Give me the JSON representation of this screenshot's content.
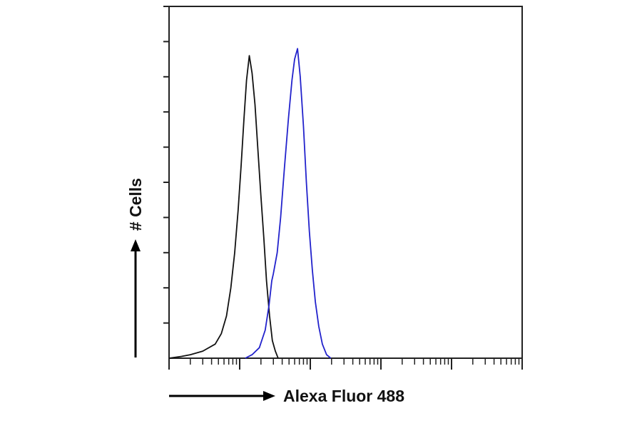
{
  "chart_data": {
    "type": "line",
    "title": "",
    "xlabel": "Alexa Fluor 488",
    "ylabel": "# Cells",
    "x_scale": "log",
    "xlim": [
      1,
      100000
    ],
    "ylim": [
      0,
      100
    ],
    "grid": false,
    "legend": "none",
    "series": [
      {
        "color": "#111111",
        "points": [
          [
            1.0,
            0
          ],
          [
            1.5,
            0.5
          ],
          [
            2.0,
            1
          ],
          [
            3.0,
            2
          ],
          [
            4.5,
            4
          ],
          [
            5.5,
            7
          ],
          [
            6.5,
            12
          ],
          [
            7.5,
            20
          ],
          [
            8.5,
            30
          ],
          [
            9.5,
            42
          ],
          [
            10.5,
            55
          ],
          [
            11.5,
            68
          ],
          [
            12.5,
            79
          ],
          [
            13.7,
            86
          ],
          [
            15.0,
            81
          ],
          [
            16.5,
            72
          ],
          [
            18.0,
            60
          ],
          [
            20.0,
            46
          ],
          [
            22.0,
            34
          ],
          [
            24.0,
            22
          ],
          [
            26.5,
            12
          ],
          [
            29.0,
            5
          ],
          [
            32.0,
            2
          ],
          [
            35.0,
            0
          ]
        ]
      },
      {
        "color": "#2222cc",
        "points": [
          [
            12.0,
            0
          ],
          [
            15.0,
            1
          ],
          [
            19.0,
            3
          ],
          [
            23.0,
            8
          ],
          [
            26.0,
            15
          ],
          [
            28.5,
            22
          ],
          [
            30.0,
            24
          ],
          [
            34.0,
            30
          ],
          [
            38.0,
            40
          ],
          [
            43.0,
            54
          ],
          [
            49.0,
            68
          ],
          [
            55.0,
            79
          ],
          [
            60.0,
            85
          ],
          [
            66.0,
            88
          ],
          [
            72.0,
            80
          ],
          [
            80.0,
            66
          ],
          [
            88.0,
            50
          ],
          [
            97.0,
            36
          ],
          [
            107.0,
            25
          ],
          [
            118.0,
            16
          ],
          [
            132.0,
            9
          ],
          [
            148.0,
            4
          ],
          [
            170.0,
            1
          ],
          [
            195.0,
            0
          ]
        ]
      }
    ]
  }
}
